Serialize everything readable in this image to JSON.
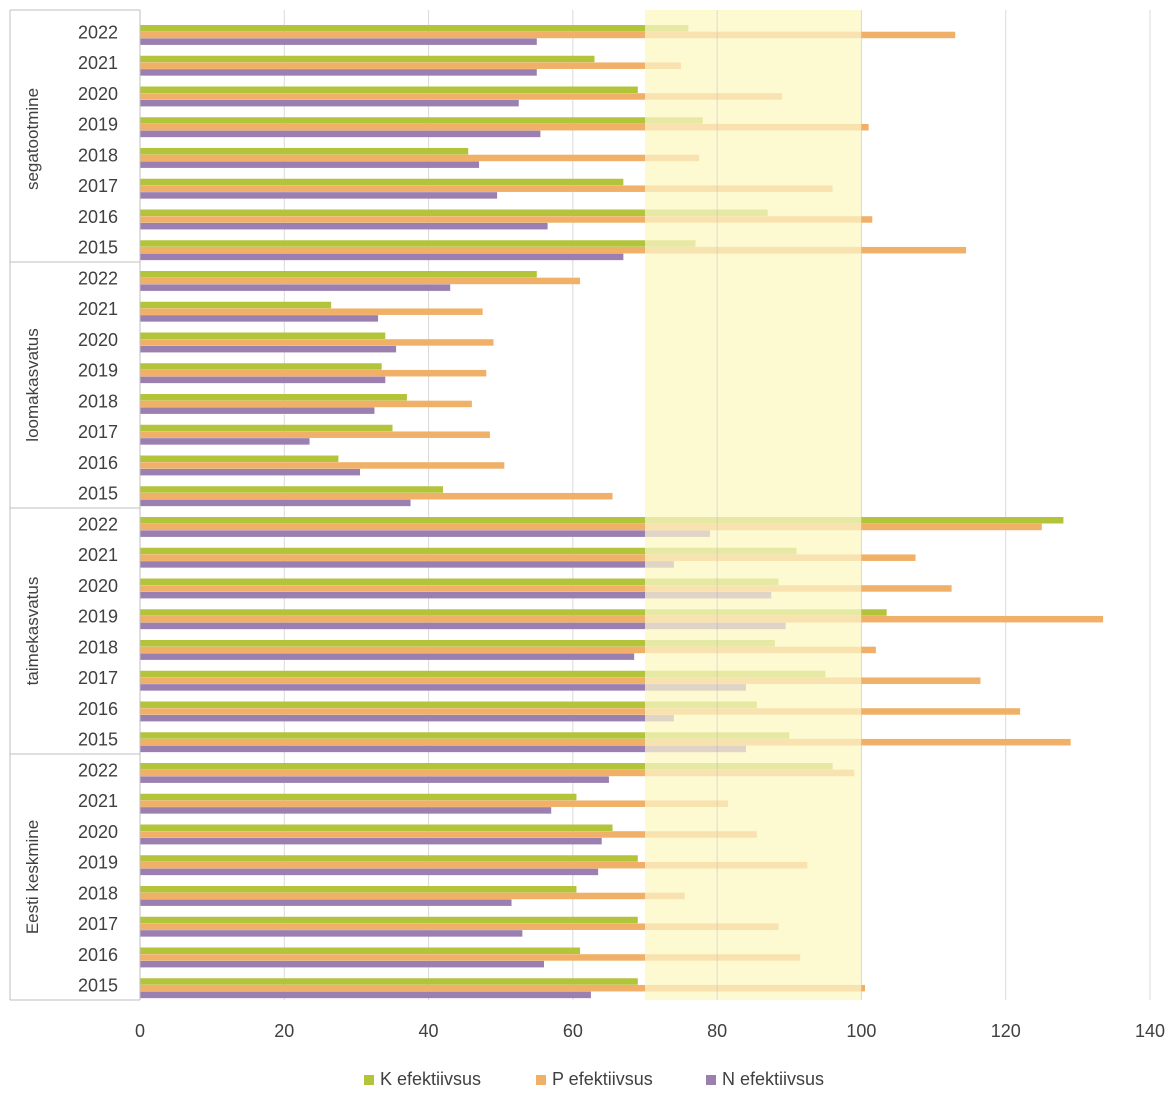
{
  "chart_data": {
    "type": "bar",
    "orientation": "horizontal",
    "xlim": [
      0,
      140
    ],
    "xticks": [
      0,
      20,
      40,
      60,
      80,
      100,
      120,
      140
    ],
    "grid": true,
    "legend_position": "bottom",
    "highlight_band": {
      "from": 70,
      "to": 100,
      "color": "#fdf9d0"
    },
    "series_colors": [
      "#b3c43a",
      "#f0b067",
      "#9b7fb0"
    ],
    "series": [
      {
        "name": "K efektiivsus"
      },
      {
        "name": "P efektiivsus"
      },
      {
        "name": "N efektiivsus"
      }
    ],
    "groups": [
      {
        "name": "segatootmine",
        "rows": [
          {
            "year": "2022",
            "values": [
              76,
              113,
              55
            ]
          },
          {
            "year": "2021",
            "values": [
              63,
              75,
              55
            ]
          },
          {
            "year": "2020",
            "values": [
              69,
              89,
              52.5
            ]
          },
          {
            "year": "2019",
            "values": [
              78,
              101,
              55.5
            ]
          },
          {
            "year": "2018",
            "values": [
              45.5,
              77.5,
              47
            ]
          },
          {
            "year": "2017",
            "values": [
              67,
              96,
              49.5
            ]
          },
          {
            "year": "2016",
            "values": [
              87,
              101.5,
              56.5
            ]
          },
          {
            "year": "2015",
            "values": [
              77,
              114.5,
              67
            ]
          }
        ]
      },
      {
        "name": "loomakasvatus",
        "rows": [
          {
            "year": "2022",
            "values": [
              55,
              61,
              43
            ]
          },
          {
            "year": "2021",
            "values": [
              26.5,
              47.5,
              33
            ]
          },
          {
            "year": "2020",
            "values": [
              34,
              49,
              35.5
            ]
          },
          {
            "year": "2019",
            "values": [
              33.5,
              48,
              34
            ]
          },
          {
            "year": "2018",
            "values": [
              37,
              46,
              32.5
            ]
          },
          {
            "year": "2017",
            "values": [
              35,
              48.5,
              23.5
            ]
          },
          {
            "year": "2016",
            "values": [
              27.5,
              50.5,
              30.5
            ]
          },
          {
            "year": "2015",
            "values": [
              42,
              65.5,
              37.5
            ]
          }
        ]
      },
      {
        "name": "taimekasvatus",
        "rows": [
          {
            "year": "2022",
            "values": [
              128,
              125,
              79
            ]
          },
          {
            "year": "2021",
            "values": [
              91,
              107.5,
              74
            ]
          },
          {
            "year": "2020",
            "values": [
              88.5,
              112.5,
              87.5
            ]
          },
          {
            "year": "2019",
            "values": [
              103.5,
              133.5,
              89.5
            ]
          },
          {
            "year": "2018",
            "values": [
              88,
              102,
              68.5
            ]
          },
          {
            "year": "2017",
            "values": [
              95,
              116.5,
              84
            ]
          },
          {
            "year": "2016",
            "values": [
              85.5,
              122,
              74
            ]
          },
          {
            "year": "2015",
            "values": [
              90,
              129,
              84
            ]
          }
        ]
      },
      {
        "name": "Eesti keskmine",
        "rows": [
          {
            "year": "2022",
            "values": [
              96,
              99,
              65
            ]
          },
          {
            "year": "2021",
            "values": [
              60.5,
              81.5,
              57
            ]
          },
          {
            "year": "2020",
            "values": [
              65.5,
              85.5,
              64
            ]
          },
          {
            "year": "2019",
            "values": [
              69,
              92.5,
              63.5
            ]
          },
          {
            "year": "2018",
            "values": [
              60.5,
              75.5,
              51.5
            ]
          },
          {
            "year": "2017",
            "values": [
              69,
              88.5,
              53
            ]
          },
          {
            "year": "2016",
            "values": [
              61,
              91.5,
              56
            ]
          },
          {
            "year": "2015",
            "values": [
              69,
              100.5,
              62.5
            ]
          }
        ]
      }
    ]
  }
}
